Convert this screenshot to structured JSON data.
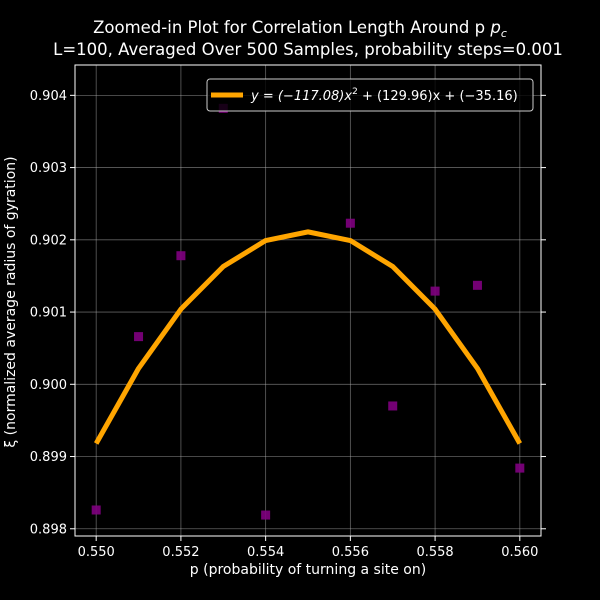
{
  "chart_data": {
    "type": "scatter",
    "title_line1": "Zoomed-in Plot for Correlation Length Around p",
    "title_line1_sub": "c",
    "title_line2": "L=100, Averaged Over 500 Samples, probability steps=0.001",
    "xlabel": "p (probability of turning a site on)",
    "ylabel": "ξ (normalized average radius of gyration)",
    "xlim": [
      0.5495,
      0.5605
    ],
    "ylim": [
      0.8979,
      0.90442
    ],
    "x_ticks": [
      0.55,
      0.552,
      0.554,
      0.556,
      0.558,
      0.56
    ],
    "x_tick_labels": [
      "0.550",
      "0.552",
      "0.554",
      "0.556",
      "0.558",
      "0.560"
    ],
    "y_ticks": [
      0.898,
      0.899,
      0.9,
      0.901,
      0.902,
      0.903,
      0.904
    ],
    "y_tick_labels": [
      "0.898",
      "0.899",
      "0.900",
      "0.901",
      "0.902",
      "0.903",
      "0.904"
    ],
    "grid": true,
    "legend_position": "top-right",
    "series": [
      {
        "kind": "scatter",
        "marker": "square",
        "color": "#800080",
        "x": [
          0.55,
          0.551,
          0.552,
          0.553,
          0.554,
          0.556,
          0.557,
          0.558,
          0.559,
          0.56
        ],
        "y": [
          0.89826,
          0.90066,
          0.90178,
          0.90382,
          0.89819,
          0.90223,
          0.8997,
          0.90129,
          0.90137,
          0.89884
        ]
      },
      {
        "kind": "line",
        "name": "y = (−117.08)x² + (129.96)x + (−35.16)",
        "color": "#FFA500",
        "x": [
          0.55,
          0.551,
          0.552,
          0.553,
          0.554,
          0.555,
          0.556,
          0.557,
          0.558,
          0.559,
          0.56
        ],
        "y": [
          0.89918,
          0.90022,
          0.90104,
          0.90163,
          0.90199,
          0.90211,
          0.90199,
          0.90163,
          0.90104,
          0.90022,
          0.89918
        ]
      }
    ],
    "legend": {
      "prefix": "y = (−117.08)x",
      "exp": "2",
      "suffix": " + (129.96)x + (−35.16)"
    }
  }
}
